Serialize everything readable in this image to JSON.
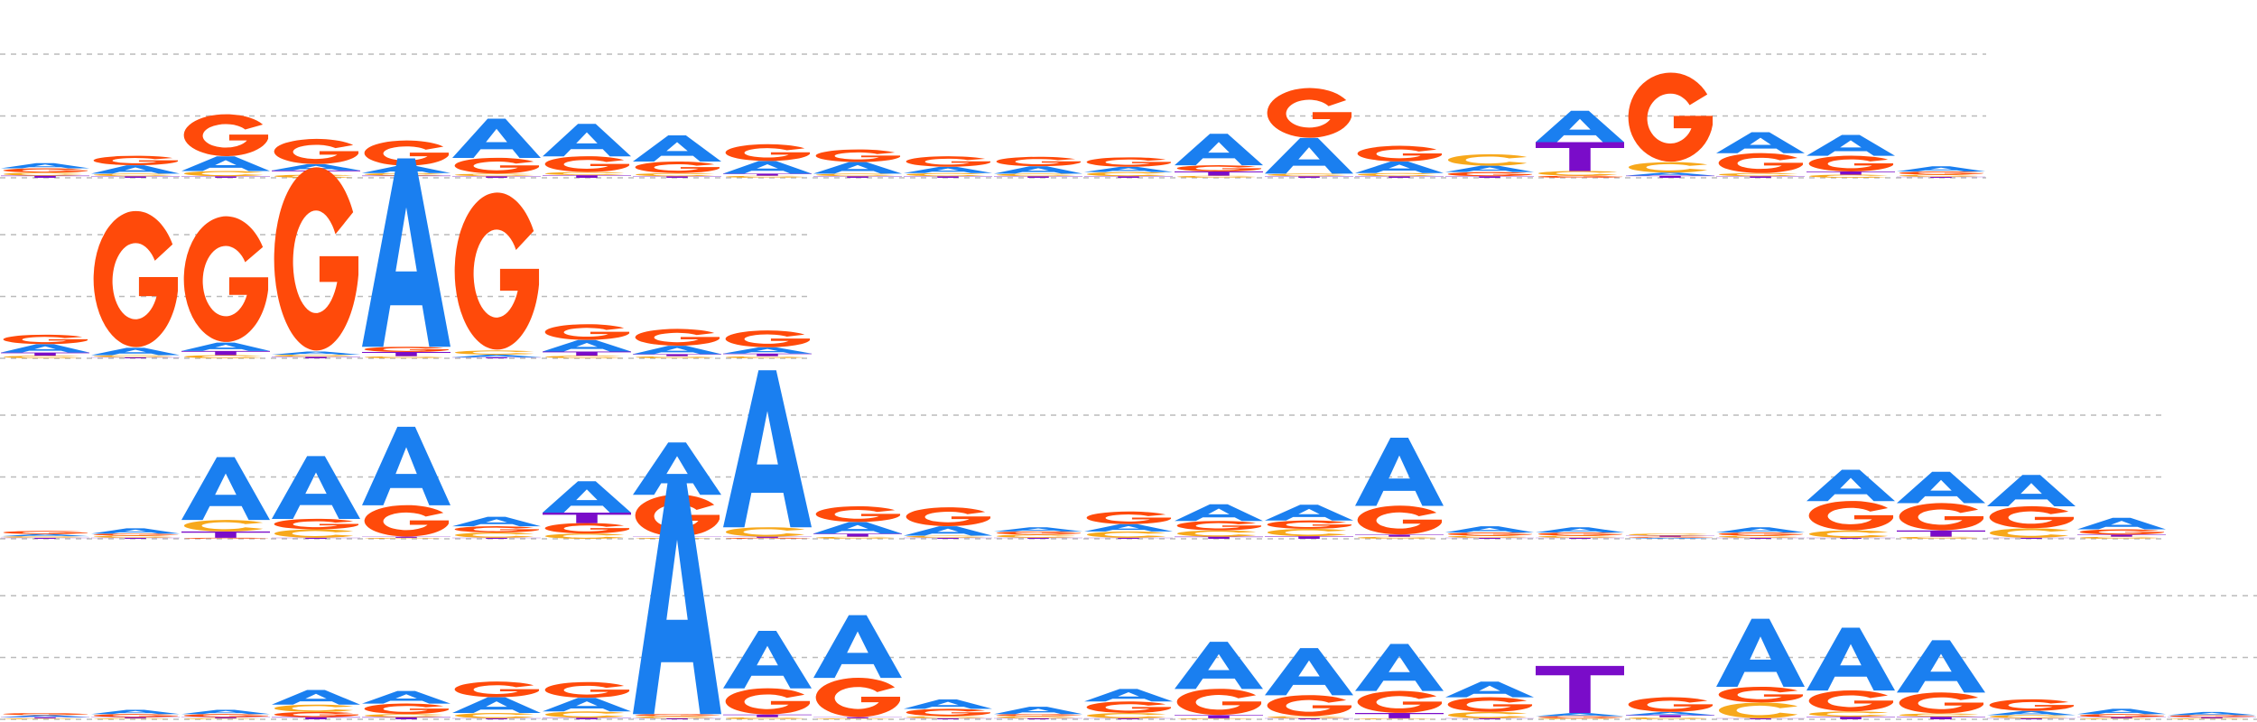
{
  "colors": {
    "A": "#1a7ff0",
    "C": "#f7a81b",
    "G": "#ff4a0a",
    "T": "#7a0cc9",
    "gridline": "#bbbbbb"
  },
  "logos": [
    {
      "name": "motif-logo-1",
      "columns": [
        {
          "A": 0.1,
          "C": 0.06,
          "G": 0.08,
          "T": 0.04
        },
        {
          "A": 0.16,
          "C": 0.05,
          "G": 0.18,
          "T": 0.03
        },
        {
          "A": 0.28,
          "C": 0.1,
          "G": 0.8,
          "T": 0.03
        },
        {
          "A": 0.12,
          "C": 0.06,
          "G": 0.48,
          "T": 0.08
        },
        {
          "A": 0.14,
          "C": 0.05,
          "G": 0.48,
          "T": 0.04
        },
        {
          "A": 0.75,
          "C": 0.05,
          "G": 0.3,
          "T": 0.03
        },
        {
          "A": 0.62,
          "C": 0.06,
          "G": 0.3,
          "T": 0.05
        },
        {
          "A": 0.5,
          "C": 0.06,
          "G": 0.22,
          "T": 0.03
        },
        {
          "A": 0.24,
          "C": 0.04,
          "G": 0.32,
          "T": 0.04
        },
        {
          "A": 0.22,
          "C": 0.05,
          "G": 0.24,
          "T": 0.03
        },
        {
          "A": 0.12,
          "C": 0.06,
          "G": 0.2,
          "T": 0.03
        },
        {
          "A": 0.14,
          "C": 0.05,
          "G": 0.18,
          "T": 0.03
        },
        {
          "A": 0.1,
          "C": 0.08,
          "G": 0.18,
          "T": 0.03
        },
        {
          "A": 0.6,
          "C": 0.04,
          "G": 0.12,
          "T": 0.08
        },
        {
          "A": 0.68,
          "C": 0.05,
          "G": 0.95,
          "T": 0.03
        },
        {
          "A": 0.22,
          "C": 0.06,
          "G": 0.3,
          "T": 0.03
        },
        {
          "A": 0.12,
          "C": 0.22,
          "G": 0.08,
          "T": 0.03
        },
        {
          "A": 0.6,
          "C": 0.09,
          "G": 0.04,
          "T": 0.55
        },
        {
          "A": 0.06,
          "C": 0.2,
          "G": 1.7,
          "T": 0.04
        },
        {
          "A": 0.4,
          "C": 0.06,
          "G": 0.38,
          "T": 0.03
        },
        {
          "A": 0.4,
          "C": 0.06,
          "G": 0.3,
          "T": 0.06
        },
        {
          "A": 0.1,
          "C": 0.04,
          "G": 0.06,
          "T": 0.02
        }
      ]
    },
    {
      "name": "motif-logo-2",
      "columns": [
        {
          "A": 0.16,
          "C": 0.05,
          "G": 0.18,
          "T": 0.06
        },
        {
          "A": 0.14,
          "C": 0.04,
          "G": 2.6,
          "T": 0.02
        },
        {
          "A": 0.16,
          "C": 0.06,
          "G": 2.4,
          "T": 0.08
        },
        {
          "A": 0.06,
          "C": 0.04,
          "G": 3.5,
          "T": 0.03
        },
        {
          "A": 3.6,
          "C": 0.04,
          "G": 0.1,
          "T": 0.08
        },
        {
          "A": 0.05,
          "C": 0.08,
          "G": 3.0,
          "T": 0.02
        },
        {
          "A": 0.22,
          "C": 0.05,
          "G": 0.3,
          "T": 0.08
        },
        {
          "A": 0.16,
          "C": 0.04,
          "G": 0.32,
          "T": 0.04
        },
        {
          "A": 0.12,
          "C": 0.04,
          "G": 0.32,
          "T": 0.05
        }
      ]
    },
    {
      "name": "motif-logo-3",
      "columns": [
        {
          "A": 0.04,
          "C": 0.03,
          "G": 0.06,
          "T": 0.02
        },
        {
          "A": 0.1,
          "C": 0.04,
          "G": 0.04,
          "T": 0.02
        },
        {
          "A": 1.2,
          "C": 0.22,
          "G": 0.02,
          "T": 0.12
        },
        {
          "A": 1.2,
          "C": 0.16,
          "G": 0.2,
          "T": 0.02
        },
        {
          "A": 1.5,
          "C": 0.02,
          "G": 0.6,
          "T": 0.02
        },
        {
          "A": 0.18,
          "C": 0.1,
          "G": 0.12,
          "T": 0.02
        },
        {
          "A": 0.6,
          "C": 0.1,
          "G": 0.2,
          "T": 0.2
        },
        {
          "A": 1.0,
          "C": 0.02,
          "G": 0.8,
          "T": 0.02
        },
        {
          "A": 3.0,
          "C": 0.18,
          "G": 0.02,
          "T": 0.02
        },
        {
          "A": 0.22,
          "C": 0.04,
          "G": 0.3,
          "T": 0.06
        },
        {
          "A": 0.18,
          "C": 0.04,
          "G": 0.36,
          "T": 0.02
        },
        {
          "A": 0.08,
          "C": 0.06,
          "G": 0.06,
          "T": 0.02
        },
        {
          "A": 0.14,
          "C": 0.12,
          "G": 0.24,
          "T": 0.02
        },
        {
          "A": 0.32,
          "C": 0.12,
          "G": 0.18,
          "T": 0.04
        },
        {
          "A": 0.3,
          "C": 0.14,
          "G": 0.16,
          "T": 0.05
        },
        {
          "A": 1.3,
          "C": 0.04,
          "G": 0.55,
          "T": 0.04
        },
        {
          "A": 0.12,
          "C": 0.04,
          "G": 0.06,
          "T": 0.02
        },
        {
          "A": 0.1,
          "C": 0.04,
          "G": 0.06,
          "T": 0.02
        },
        {
          "A": 0.02,
          "C": 0.04,
          "G": 0.02,
          "T": 0.02
        },
        {
          "A": 0.1,
          "C": 0.04,
          "G": 0.06,
          "T": 0.02
        },
        {
          "A": 0.6,
          "C": 0.14,
          "G": 0.56,
          "T": 0.02
        },
        {
          "A": 0.6,
          "C": 0.04,
          "G": 0.52,
          "T": 0.12
        },
        {
          "A": 0.6,
          "C": 0.18,
          "G": 0.42,
          "T": 0.02
        },
        {
          "A": 0.22,
          "C": 0.04,
          "G": 0.1,
          "T": 0.04
        }
      ]
    },
    {
      "name": "motif-logo-4",
      "columns": [
        {
          "A": 0.04,
          "C": 0.02,
          "G": 0.04,
          "T": 0.02
        },
        {
          "A": 0.08,
          "C": 0.02,
          "G": 0.06,
          "T": 0.02
        },
        {
          "A": 0.08,
          "C": 0.02,
          "G": 0.06,
          "T": 0.02
        },
        {
          "A": 0.28,
          "C": 0.14,
          "G": 0.1,
          "T": 0.04
        },
        {
          "A": 0.24,
          "C": 0.06,
          "G": 0.2,
          "T": 0.04
        },
        {
          "A": 0.3,
          "C": 0.1,
          "G": 0.3,
          "T": 0.02
        },
        {
          "A": 0.26,
          "C": 0.12,
          "G": 0.3,
          "T": 0.03
        },
        {
          "A": 4.5,
          "C": 0.04,
          "G": 0.04,
          "T": 0.02
        },
        {
          "A": 1.1,
          "C": 0.04,
          "G": 0.5,
          "T": 0.05
        },
        {
          "A": 1.2,
          "C": 0.02,
          "G": 0.75,
          "T": 0.02
        },
        {
          "A": 0.18,
          "C": 0.04,
          "G": 0.14,
          "T": 0.02
        },
        {
          "A": 0.14,
          "C": 0.04,
          "G": 0.04,
          "T": 0.02
        },
        {
          "A": 0.24,
          "C": 0.1,
          "G": 0.22,
          "T": 0.02
        },
        {
          "A": 0.9,
          "C": 0.02,
          "G": 0.5,
          "T": 0.06
        },
        {
          "A": 0.9,
          "C": 0.04,
          "G": 0.4,
          "T": 0.02
        },
        {
          "A": 0.9,
          "C": 0.02,
          "G": 0.42,
          "T": 0.1
        },
        {
          "A": 0.3,
          "C": 0.12,
          "G": 0.28,
          "T": 0.02
        },
        {
          "A": 0.06,
          "C": 0.02,
          "G": 0.04,
          "T": 0.9
        },
        {
          "A": 0.06,
          "C": 0.04,
          "G": 0.28,
          "T": 0.04
        },
        {
          "A": 1.3,
          "C": 0.3,
          "G": 0.3,
          "T": 0.02
        },
        {
          "A": 1.2,
          "C": 0.1,
          "G": 0.4,
          "T": 0.05
        },
        {
          "A": 1.0,
          "C": 0.06,
          "G": 0.4,
          "T": 0.05
        },
        {
          "A": 0.08,
          "C": 0.06,
          "G": 0.22,
          "T": 0.02
        },
        {
          "A": 0.1,
          "C": 0.02,
          "G": 0.06,
          "T": 0.02
        },
        {
          "A": 0.06,
          "C": 0.02,
          "G": 0.04,
          "T": 0.02
        }
      ]
    }
  ]
}
